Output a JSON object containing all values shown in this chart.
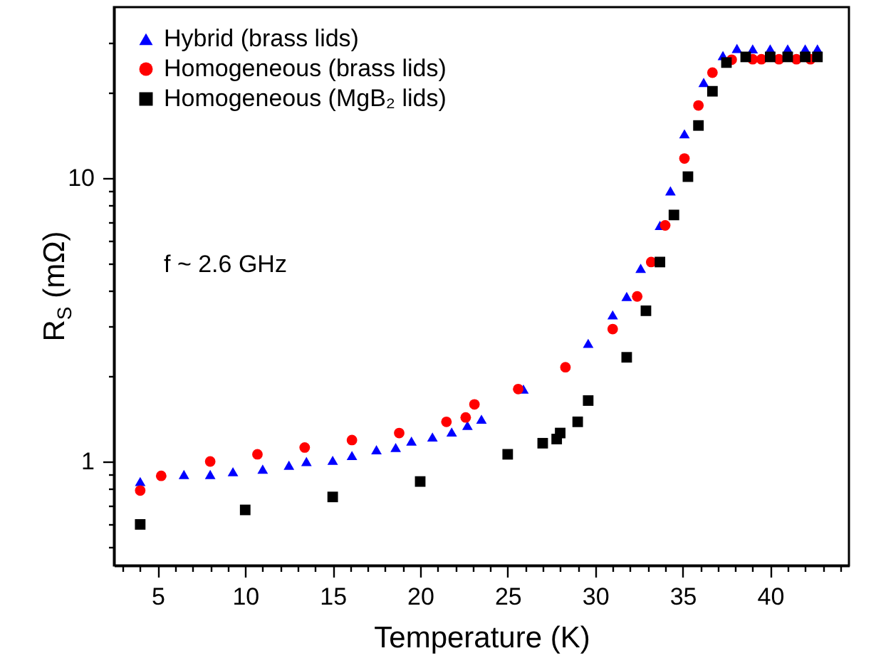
{
  "chart_data": {
    "type": "scatter",
    "xlabel": "Temperature (K)",
    "ylabel": "R$_{S}$ (mΩ)",
    "annotations": [
      "f ~ 2.6 GHz"
    ],
    "log": "y",
    "legend": "top left",
    "grid": false,
    "xlim": [
      2.5,
      44.5
    ],
    "ylim": [
      0.43,
      40
    ],
    "xticks": [
      {
        "value": 3,
        "label": null
      },
      {
        "value": 4,
        "label": null
      },
      5,
      {
        "value": 6,
        "label": null
      },
      {
        "value": 7,
        "label": null
      },
      {
        "value": 8,
        "label": null
      },
      {
        "value": 9,
        "label": null
      },
      10,
      {
        "value": 11,
        "label": null
      },
      {
        "value": 12,
        "label": null
      },
      {
        "value": 13,
        "label": null
      },
      {
        "value": 14,
        "label": null
      },
      15,
      {
        "value": 16,
        "label": null
      },
      {
        "value": 17,
        "label": null
      },
      {
        "value": 18,
        "label": null
      },
      {
        "value": 19,
        "label": null
      },
      20,
      {
        "value": 21,
        "label": null
      },
      {
        "value": 22,
        "label": null
      },
      {
        "value": 23,
        "label": null
      },
      {
        "value": 24,
        "label": null
      },
      25,
      {
        "value": 26,
        "label": null
      },
      {
        "value": 27,
        "label": null
      },
      {
        "value": 28,
        "label": null
      },
      {
        "value": 29,
        "label": null
      },
      30,
      {
        "value": 31,
        "label": null
      },
      {
        "value": 32,
        "label": null
      },
      {
        "value": 33,
        "label": null
      },
      {
        "value": 34,
        "label": null
      },
      35,
      {
        "value": 36,
        "label": null
      },
      {
        "value": 37,
        "label": null
      },
      {
        "value": 38,
        "label": null
      },
      {
        "value": 39,
        "label": null
      },
      40,
      {
        "value": 41,
        "label": null
      },
      {
        "value": 42,
        "label": null
      },
      {
        "value": 43,
        "label": null
      },
      {
        "value": 44,
        "label": null
      }
    ],
    "yticks": [
      {
        "value": 0.5,
        "label": null
      },
      {
        "value": 0.6,
        "label": null
      },
      {
        "value": 0.7,
        "label": null
      },
      {
        "value": 0.8,
        "label": null
      },
      {
        "value": 0.9,
        "label": null
      },
      1,
      {
        "value": 2,
        "label": null
      },
      {
        "value": 3,
        "label": null
      },
      {
        "value": 4,
        "label": null
      },
      {
        "value": 5,
        "label": null
      },
      {
        "value": 6,
        "label": null
      },
      {
        "value": 7,
        "label": null
      },
      {
        "value": 8,
        "label": null
      },
      {
        "value": 9,
        "label": null
      },
      10,
      {
        "value": 20,
        "label": null
      },
      {
        "value": 30,
        "label": null
      }
    ],
    "series": [
      {
        "name": "Hybrid (brass lids)",
        "color": "#0000ff",
        "marker": "triangle",
        "x": [
          4.0,
          6.5,
          8.0,
          9.3,
          11.0,
          12.5,
          13.5,
          15.0,
          16.1,
          17.5,
          18.6,
          19.5,
          20.7,
          21.8,
          22.7,
          23.5,
          25.9,
          29.6,
          31.0,
          31.8,
          32.6,
          33.7,
          34.3,
          35.1,
          36.2,
          37.3,
          38.1,
          39,
          40,
          41,
          42,
          42.7
        ],
        "values": [
          0.85,
          0.9,
          0.9,
          0.92,
          0.94,
          0.97,
          1.0,
          1.01,
          1.05,
          1.1,
          1.12,
          1.18,
          1.22,
          1.27,
          1.34,
          1.41,
          1.8,
          2.61,
          3.29,
          3.82,
          4.8,
          6.8,
          9.0,
          14.3,
          21.7,
          27,
          28.6,
          28.5,
          28.5,
          28.5,
          28.5,
          28.5
        ]
      },
      {
        "name": "Homogeneous (brass lids)",
        "color": "#ff0000",
        "marker": "circle",
        "x": [
          4.0,
          5.2,
          8.0,
          10.7,
          13.4,
          16.1,
          18.8,
          21.5,
          22.6,
          23.1,
          25.6,
          28.3,
          31.0,
          32.4,
          33.2,
          34.0,
          35.1,
          35.9,
          36.7,
          37.8,
          39,
          39.5,
          40.5,
          41.5,
          42.3
        ],
        "values": [
          0.79,
          0.89,
          1.0,
          1.06,
          1.12,
          1.19,
          1.26,
          1.38,
          1.43,
          1.59,
          1.8,
          2.15,
          2.93,
          3.82,
          5.05,
          6.8,
          11.7,
          18,
          23.5,
          26.1,
          26.2,
          26.2,
          26.2,
          26.2,
          26.2
        ]
      },
      {
        "name": "Homogeneous (MgB₂ lids)",
        "color": "#000000",
        "marker": "square",
        "x": [
          4.0,
          10.0,
          15.0,
          20.0,
          25.0,
          27.0,
          27.8,
          28.0,
          29.0,
          29.6,
          31.8,
          32.9,
          33.7,
          34.5,
          35.3,
          35.9,
          36.7,
          37.5,
          38.6,
          40,
          41,
          42,
          42.7
        ],
        "values": [
          0.6,
          0.675,
          0.75,
          0.85,
          1.06,
          1.16,
          1.2,
          1.26,
          1.38,
          1.64,
          2.33,
          3.4,
          5.05,
          7.4,
          10.1,
          15.3,
          20.2,
          25.5,
          26.7,
          26.7,
          26.7,
          26.7,
          26.7
        ]
      }
    ]
  }
}
